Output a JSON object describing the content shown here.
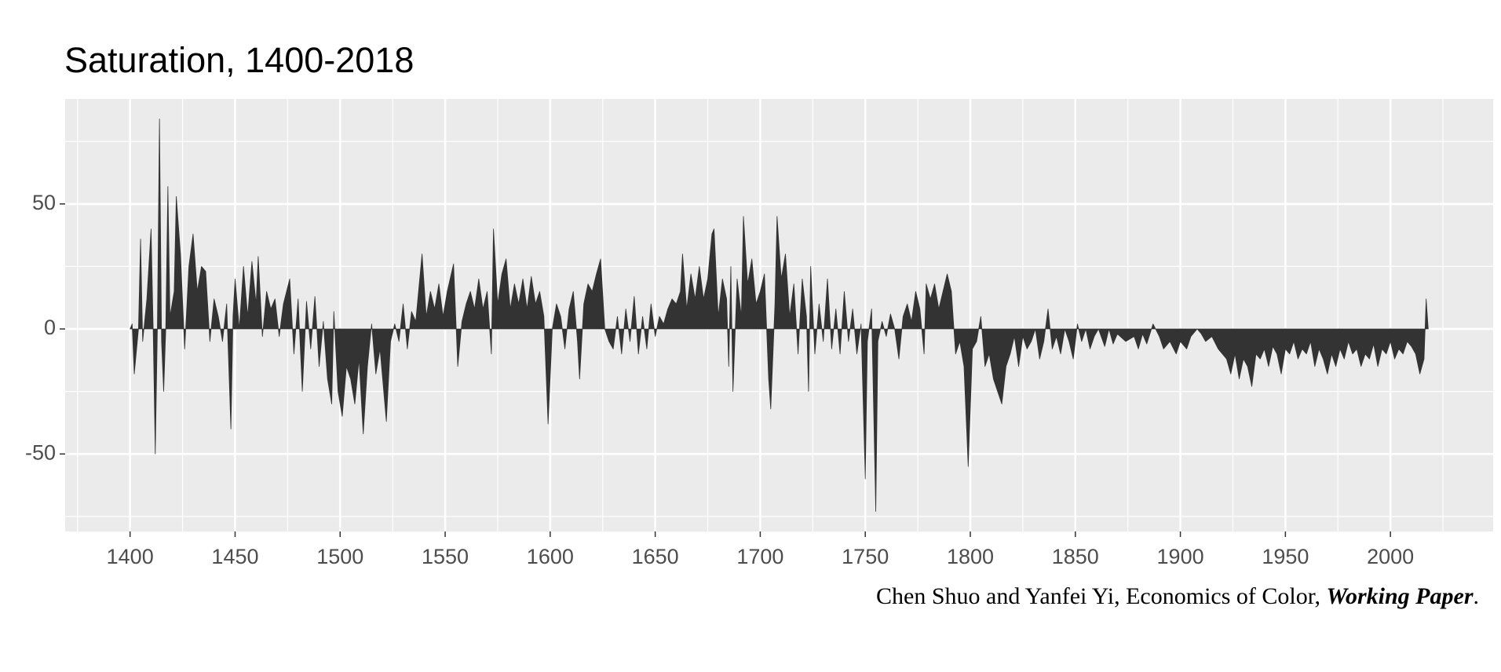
{
  "chart_data": {
    "type": "area",
    "title": "Saturation, 1400-2018",
    "caption": [
      "Chen Shuo and Yanfei Yi, Economics of Color, ",
      "Working Paper",
      "."
    ],
    "color": "#333333",
    "grid": true,
    "minor_grid": true,
    "xlim": [
      1369.1,
      2048.9
    ],
    "xticks": [
      1400,
      1450,
      1500,
      1550,
      1600,
      1650,
      1700,
      1750,
      1800,
      1850,
      1900,
      1950,
      2000
    ],
    "ylim": [
      -81,
      92
    ],
    "yticks": [
      -50,
      0,
      50
    ],
    "x": [
      1400,
      1401,
      1402,
      1404,
      1405,
      1406,
      1408,
      1410,
      1411,
      1412,
      1413,
      1414,
      1415,
      1416,
      1417,
      1418,
      1419,
      1421,
      1422,
      1424,
      1426,
      1428,
      1430,
      1432,
      1434,
      1436,
      1438,
      1440,
      1442,
      1444,
      1446,
      1448,
      1449,
      1450,
      1452,
      1454,
      1456,
      1458,
      1460,
      1461,
      1463,
      1465,
      1467,
      1469,
      1471,
      1473,
      1476,
      1478,
      1480,
      1482,
      1484,
      1486,
      1488,
      1490,
      1492,
      1494,
      1496,
      1497,
      1499,
      1501,
      1503,
      1505,
      1507,
      1509,
      1511,
      1513,
      1515,
      1517,
      1519,
      1522,
      1524,
      1526,
      1528,
      1530,
      1532,
      1534,
      1536,
      1539,
      1541,
      1543,
      1545,
      1547,
      1549,
      1551,
      1554,
      1556,
      1558,
      1560,
      1562,
      1564,
      1566,
      1568,
      1570,
      1572,
      1573,
      1575,
      1577,
      1579,
      1581,
      1583,
      1585,
      1587,
      1589,
      1591,
      1593,
      1595,
      1597,
      1599,
      1601,
      1603,
      1605,
      1607,
      1609,
      1611,
      1613,
      1614,
      1616,
      1618,
      1620,
      1622,
      1624,
      1626,
      1628,
      1630,
      1632,
      1634,
      1636,
      1638,
      1640,
      1642,
      1644,
      1646,
      1648,
      1650,
      1652,
      1654,
      1656,
      1658,
      1660,
      1662,
      1663,
      1665,
      1667,
      1669,
      1671,
      1673,
      1675,
      1677,
      1678,
      1680,
      1682,
      1684,
      1685,
      1686,
      1687,
      1689,
      1691,
      1692,
      1694,
      1696,
      1698,
      1700,
      1702,
      1704,
      1705,
      1707,
      1708,
      1710,
      1712,
      1714,
      1716,
      1718,
      1720,
      1722,
      1723,
      1724,
      1726,
      1728,
      1730,
      1732,
      1734,
      1736,
      1738,
      1740,
      1742,
      1744,
      1746,
      1748,
      1750,
      1751,
      1753,
      1755,
      1756,
      1758,
      1760,
      1762,
      1764,
      1766,
      1768,
      1770,
      1772,
      1774,
      1776,
      1778,
      1779,
      1781,
      1783,
      1785,
      1787,
      1789,
      1791,
      1793,
      1795,
      1797,
      1799,
      1801,
      1803,
      1805,
      1807,
      1809,
      1811,
      1813,
      1815,
      1817,
      1819,
      1821,
      1823,
      1825,
      1827,
      1829,
      1831,
      1833,
      1835,
      1837,
      1839,
      1841,
      1843,
      1845,
      1847,
      1849,
      1851,
      1853,
      1855,
      1857,
      1859,
      1861,
      1864,
      1866,
      1868,
      1870,
      1874,
      1878,
      1880,
      1882,
      1884,
      1887,
      1890,
      1892,
      1895,
      1898,
      1900,
      1903,
      1905,
      1908,
      1910,
      1912,
      1915,
      1918,
      1920,
      1922,
      1924,
      1926,
      1928,
      1930,
      1932,
      1934,
      1936,
      1938,
      1940,
      1942,
      1944,
      1946,
      1948,
      1950,
      1952,
      1954,
      1956,
      1958,
      1960,
      1962,
      1964,
      1966,
      1968,
      1970,
      1972,
      1974,
      1976,
      1978,
      1980,
      1982,
      1984,
      1986,
      1988,
      1990,
      1992,
      1994,
      1996,
      1998,
      2000,
      2002,
      2004,
      2006,
      2008,
      2010,
      2012,
      2014,
      2016,
      2017,
      2018
    ],
    "values": [
      0,
      2,
      -18,
      0,
      36,
      -5,
      12,
      40,
      0,
      -50,
      0,
      84,
      -5,
      -25,
      0,
      57,
      5,
      15,
      53,
      30,
      -8,
      25,
      38,
      15,
      25,
      23,
      -5,
      12,
      5,
      -5,
      10,
      -40,
      5,
      20,
      0,
      25,
      5,
      27,
      10,
      29,
      -3,
      15,
      8,
      12,
      -3,
      10,
      20,
      -10,
      12,
      -25,
      11,
      -8,
      13,
      -15,
      3,
      -20,
      -30,
      7,
      -25,
      -35,
      -15,
      -20,
      -30,
      -12,
      -42,
      -15,
      2,
      -18,
      -8,
      -37,
      -5,
      2,
      -5,
      10,
      -8,
      7,
      3,
      30,
      5,
      15,
      8,
      18,
      5,
      15,
      26,
      -15,
      3,
      10,
      15,
      8,
      20,
      8,
      15,
      -10,
      40,
      10,
      22,
      28,
      8,
      18,
      10,
      20,
      8,
      21,
      10,
      15,
      5,
      -38,
      0,
      10,
      5,
      -8,
      8,
      15,
      -5,
      -20,
      10,
      18,
      15,
      22,
      28,
      0,
      -5,
      -8,
      5,
      -10,
      8,
      -5,
      13,
      -10,
      5,
      -8,
      10,
      -3,
      5,
      2,
      8,
      12,
      10,
      15,
      30,
      8,
      22,
      12,
      25,
      12,
      20,
      38,
      40,
      5,
      20,
      12,
      -15,
      25,
      -25,
      20,
      5,
      45,
      18,
      28,
      10,
      15,
      22,
      -20,
      -32,
      10,
      45,
      20,
      30,
      5,
      18,
      -10,
      20,
      5,
      -25,
      25,
      -10,
      10,
      -5,
      20,
      -8,
      8,
      -10,
      15,
      -5,
      8,
      -10,
      2,
      -60,
      -5,
      8,
      -73,
      -5,
      3,
      -3,
      6,
      0,
      -12,
      5,
      10,
      3,
      15,
      8,
      -10,
      18,
      12,
      18,
      8,
      15,
      22,
      15,
      -10,
      -5,
      -15,
      -55,
      -8,
      -5,
      5,
      -15,
      -10,
      -20,
      -25,
      -30,
      -15,
      -10,
      -3,
      -15,
      -3,
      -8,
      -5,
      0,
      -12,
      -5,
      8,
      -8,
      -3,
      -10,
      0,
      -5,
      -12,
      2,
      -5,
      0,
      -8,
      -3,
      0,
      -7,
      0,
      -6,
      -2,
      -5,
      -3,
      -8,
      -2,
      -6,
      2,
      -3,
      -8,
      -5,
      -10,
      -5,
      -8,
      -3,
      0,
      -2,
      -5,
      -3,
      -8,
      -10,
      -12,
      -18,
      -10,
      -20,
      -12,
      -15,
      -23,
      -10,
      -12,
      -8,
      -15,
      -7,
      -10,
      -18,
      -8,
      -10,
      -5,
      -12,
      -8,
      -10,
      -5,
      -15,
      -8,
      -12,
      -18,
      -10,
      -15,
      -8,
      -12,
      -5,
      -10,
      -8,
      -15,
      -10,
      -12,
      -6,
      -15,
      -8,
      -10,
      -5,
      -12,
      -8,
      -10,
      -5,
      -7,
      -10,
      -18,
      -12,
      12,
      0
    ]
  }
}
